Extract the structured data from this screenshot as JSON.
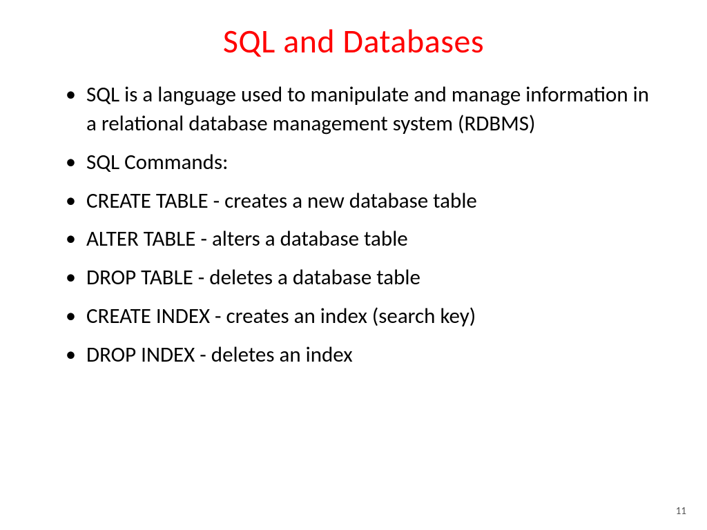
{
  "slide": {
    "title": "SQL and Databases",
    "title_color": "#ff0000",
    "title_fontsize": 48,
    "body_fontsize": 31,
    "body_color": "#000000",
    "background_color": "#ffffff",
    "bullets": [
      "SQL is a language used to manipulate and manage information in a relational database management system (RDBMS)",
      "SQL Commands:",
      "CREATE TABLE - creates a new database table",
      "ALTER TABLE - alters a database table",
      "DROP TABLE - deletes a database table",
      "CREATE INDEX - creates an index (search key)",
      "DROP INDEX - deletes an index"
    ],
    "page_number": "11"
  }
}
